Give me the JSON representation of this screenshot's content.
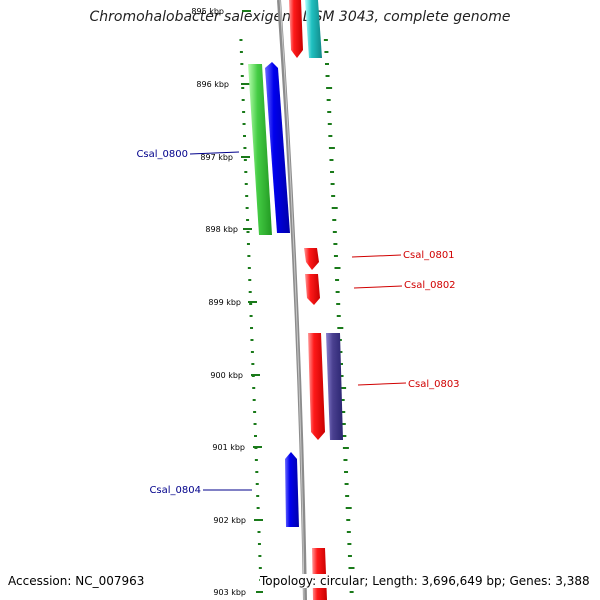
{
  "title": "Chromohalobacter salexigens DSM 3043, complete genome",
  "footer": {
    "accession": "Accession: NC_007963",
    "topology": "Topology: circular; Length: 3,696,649 bp; Genes: 3,388"
  },
  "axis": {
    "ticks": [
      "895 kbp",
      "896 kbp",
      "897 kbp",
      "898 kbp",
      "899 kbp",
      "900 kbp",
      "901 kbp",
      "902 kbp",
      "903 kbp"
    ]
  },
  "gene_labels": [
    {
      "text": "Csal_0800",
      "color": "#00008b"
    },
    {
      "text": "Csal_0801",
      "color": "#d00000"
    },
    {
      "text": "Csal_0802",
      "color": "#d00000"
    },
    {
      "text": "Csal_0803",
      "color": "#d00000"
    },
    {
      "text": "Csal_0804",
      "color": "#00008b"
    }
  ],
  "colors": {
    "forward_cds": "#ff1a1a",
    "reverse_cds": "#0000ee",
    "rna": "#44cc44",
    "other": "#20c0c0",
    "purple": "#4a4090",
    "backbone": "#888888",
    "gc_dots": "#1a7a1a"
  }
}
